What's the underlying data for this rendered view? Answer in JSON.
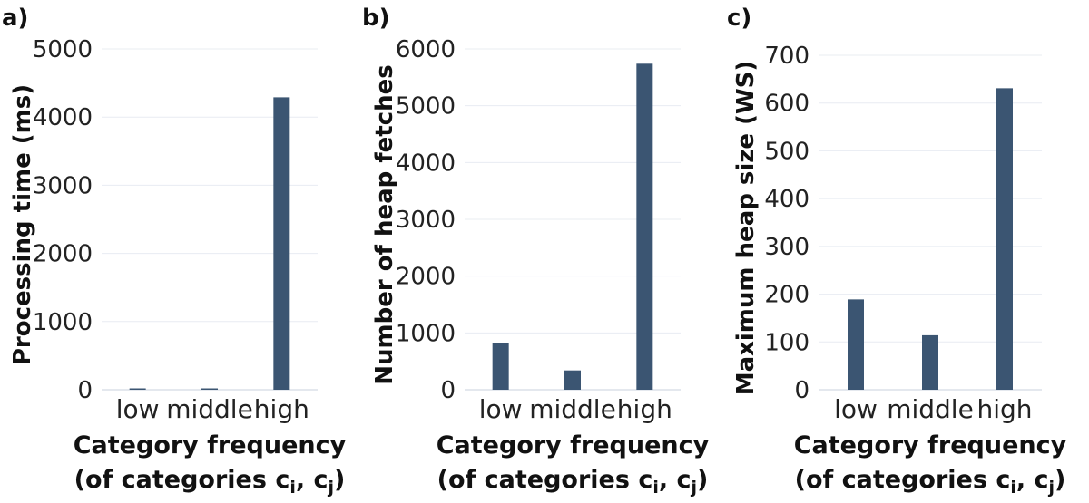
{
  "chart_data": [
    {
      "type": "bar",
      "panel_label": "a)",
      "categories": [
        "low",
        "middle",
        "high"
      ],
      "values": [
        20,
        8,
        4290
      ],
      "ylabel": "Processing time (ms)",
      "xlabel_line1": "Category frequency",
      "xlabel_line2_prefix": "(of categories c",
      "xlabel_sub1": "i",
      "xlabel_mid": ", c",
      "xlabel_sub2": "j",
      "xlabel_suffix": ")",
      "ylim": [
        0,
        5000
      ],
      "yticks": [
        0,
        1000,
        2000,
        3000,
        4000,
        5000
      ],
      "grid": true,
      "bar_color": "#3b5572"
    },
    {
      "type": "bar",
      "panel_label": "b)",
      "categories": [
        "low",
        "middle",
        "high"
      ],
      "values": [
        820,
        340,
        5740
      ],
      "ylabel": "Number of heap fetches",
      "xlabel_line1": "Category frequency",
      "xlabel_line2_prefix": "(of categories c",
      "xlabel_sub1": "i",
      "xlabel_mid": ", c",
      "xlabel_sub2": "j",
      "xlabel_suffix": ")",
      "ylim": [
        0,
        6000
      ],
      "yticks": [
        0,
        1000,
        2000,
        3000,
        4000,
        5000,
        6000
      ],
      "grid": true,
      "bar_color": "#3b5572"
    },
    {
      "type": "bar",
      "panel_label": "c)",
      "categories": [
        "low",
        "middle",
        "high"
      ],
      "values": [
        189,
        114,
        631
      ],
      "ylabel": "Maximum heap size (WS)",
      "xlabel_line1": "Category frequency",
      "xlabel_line2_prefix": "(of categories c",
      "xlabel_sub1": "i",
      "xlabel_mid": ", c",
      "xlabel_sub2": "j",
      "xlabel_suffix": ")",
      "ylim": [
        0,
        700
      ],
      "yticks": [
        0,
        100,
        200,
        300,
        400,
        500,
        600,
        700
      ],
      "grid": true,
      "bar_color": "#3b5572"
    }
  ]
}
